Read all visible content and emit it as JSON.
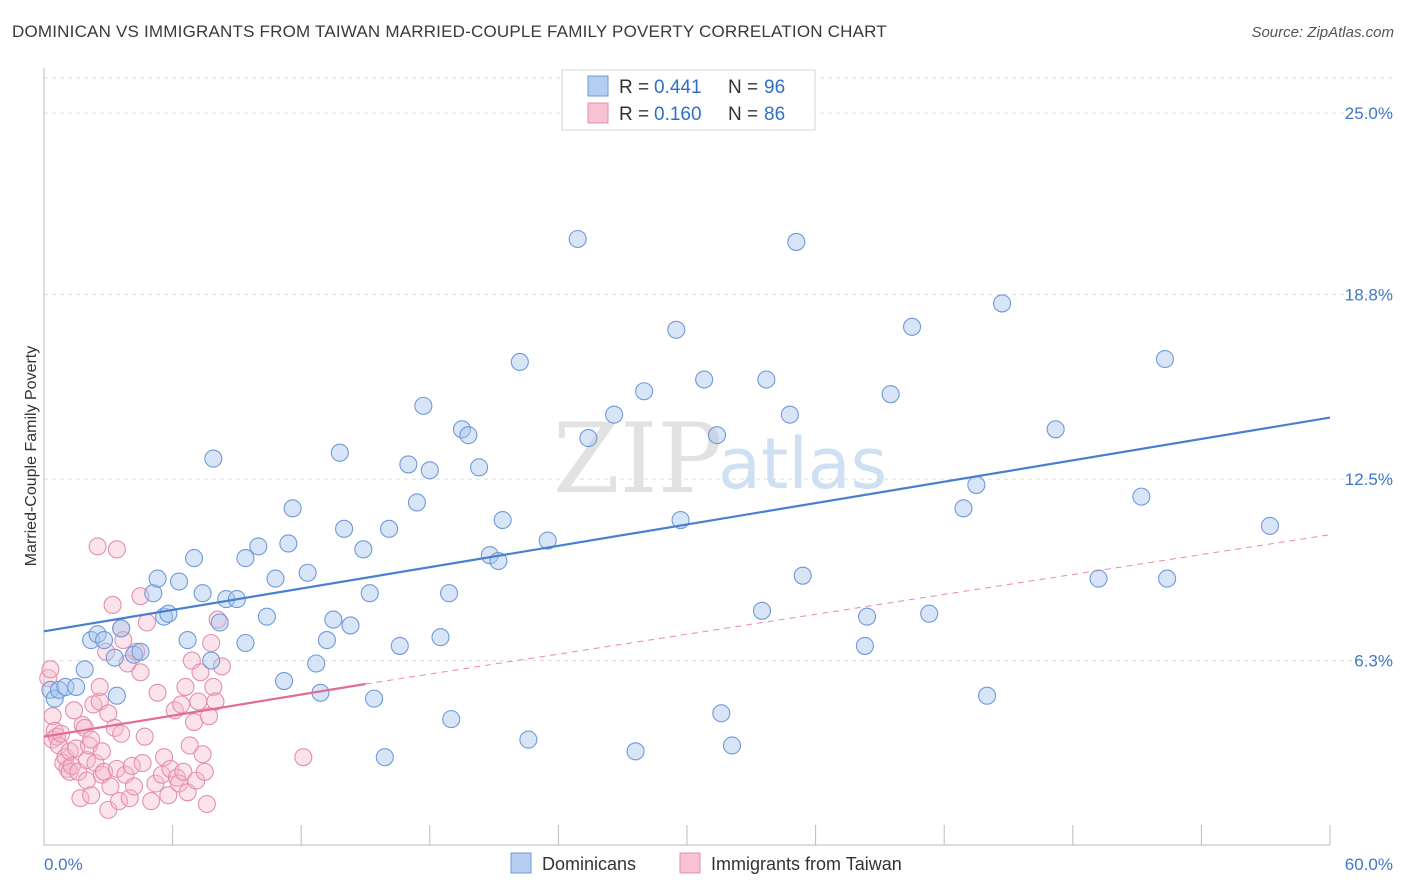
{
  "title": "DOMINICAN VS IMMIGRANTS FROM TAIWAN MARRIED-COUPLE FAMILY POVERTY CORRELATION CHART",
  "source": "Source: ZipAtlas.com",
  "watermark": {
    "zip": "ZIP",
    "atlas": "atlas"
  },
  "colors": {
    "blue": "#4a7fd0",
    "blue_fill": "#a9c6ee",
    "pink": "#e46b97",
    "pink_fill": "#f4b8cc",
    "grid": "#dddddd",
    "tick_label": "#3f78c8"
  },
  "legend": {
    "rows": [
      {
        "r_label": "R =",
        "r_value": "0.441",
        "n_label": "N =",
        "n_value": "96"
      },
      {
        "r_label": "R =",
        "r_value": "0.160",
        "n_label": "N =",
        "n_value": "86"
      }
    ]
  },
  "bottom_legend": [
    "Dominicans",
    "Immigrants from Taiwan"
  ],
  "chart_data": {
    "type": "scatter",
    "title": "DOMINICAN VS IMMIGRANTS FROM TAIWAN MARRIED-COUPLE FAMILY POVERTY CORRELATION CHART",
    "xlabel": "",
    "ylabel": "Married-Couple Family Poverty",
    "xlim": [
      0,
      60
    ],
    "ylim": [
      0,
      26.2
    ],
    "x_tick_labels": [
      "0.0%",
      "60.0%"
    ],
    "y_ticks": [
      6.3,
      12.5,
      18.8,
      25.0
    ],
    "y_tick_labels": [
      "6.3%",
      "12.5%",
      "18.8%",
      "25.0%"
    ],
    "series": [
      {
        "name": "Dominicans",
        "R": 0.441,
        "N": 96,
        "trend": {
          "x0": 0,
          "y0": 7.3,
          "x1": 60,
          "y1": 14.6,
          "style": "solid"
        },
        "points": [
          [
            0.3,
            5.3
          ],
          [
            0.5,
            5.0
          ],
          [
            0.7,
            5.3
          ],
          [
            1.0,
            5.4
          ],
          [
            1.5,
            5.4
          ],
          [
            1.9,
            6.0
          ],
          [
            2.2,
            7.0
          ],
          [
            2.5,
            7.2
          ],
          [
            2.8,
            7.0
          ],
          [
            3.3,
            6.4
          ],
          [
            3.4,
            5.1
          ],
          [
            3.6,
            7.4
          ],
          [
            4.2,
            6.5
          ],
          [
            4.5,
            6.6
          ],
          [
            5.1,
            8.6
          ],
          [
            5.3,
            9.1
          ],
          [
            5.6,
            7.8
          ],
          [
            5.8,
            7.9
          ],
          [
            6.3,
            9.0
          ],
          [
            6.7,
            7.0
          ],
          [
            7.0,
            9.8
          ],
          [
            7.4,
            8.6
          ],
          [
            7.8,
            6.3
          ],
          [
            7.9,
            13.2
          ],
          [
            8.2,
            7.6
          ],
          [
            8.5,
            8.4
          ],
          [
            9.0,
            8.4
          ],
          [
            9.4,
            6.9
          ],
          [
            9.4,
            9.8
          ],
          [
            10.0,
            10.2
          ],
          [
            10.4,
            7.8
          ],
          [
            10.8,
            9.1
          ],
          [
            11.2,
            5.6
          ],
          [
            11.4,
            10.3
          ],
          [
            11.6,
            11.5
          ],
          [
            12.3,
            9.3
          ],
          [
            12.7,
            6.2
          ],
          [
            12.9,
            5.2
          ],
          [
            13.2,
            7.0
          ],
          [
            13.5,
            7.7
          ],
          [
            13.8,
            13.4
          ],
          [
            14.0,
            10.8
          ],
          [
            14.3,
            7.5
          ],
          [
            14.9,
            10.1
          ],
          [
            15.2,
            8.6
          ],
          [
            15.4,
            5.0
          ],
          [
            15.9,
            3.0
          ],
          [
            16.1,
            10.8
          ],
          [
            16.6,
            6.8
          ],
          [
            17.0,
            13.0
          ],
          [
            17.4,
            11.7
          ],
          [
            17.7,
            15.0
          ],
          [
            18.0,
            12.8
          ],
          [
            18.5,
            7.1
          ],
          [
            18.9,
            8.6
          ],
          [
            19.0,
            4.3
          ],
          [
            19.5,
            14.2
          ],
          [
            19.8,
            14.0
          ],
          [
            20.3,
            12.9
          ],
          [
            20.8,
            9.9
          ],
          [
            21.2,
            9.7
          ],
          [
            21.4,
            11.1
          ],
          [
            22.2,
            16.5
          ],
          [
            22.6,
            3.6
          ],
          [
            23.5,
            10.4
          ],
          [
            24.9,
            20.7
          ],
          [
            25.4,
            13.9
          ],
          [
            26.6,
            14.7
          ],
          [
            27.6,
            3.2
          ],
          [
            28.0,
            15.5
          ],
          [
            29.5,
            17.6
          ],
          [
            29.7,
            11.1
          ],
          [
            30.8,
            15.9
          ],
          [
            31.4,
            14.0
          ],
          [
            31.6,
            4.5
          ],
          [
            32.1,
            3.4
          ],
          [
            33.5,
            8.0
          ],
          [
            33.7,
            15.9
          ],
          [
            34.8,
            14.7
          ],
          [
            35.1,
            20.6
          ],
          [
            35.4,
            9.2
          ],
          [
            38.3,
            6.8
          ],
          [
            38.4,
            7.8
          ],
          [
            39.5,
            15.4
          ],
          [
            40.5,
            17.7
          ],
          [
            41.3,
            7.9
          ],
          [
            42.9,
            11.5
          ],
          [
            43.5,
            12.3
          ],
          [
            44.0,
            5.1
          ],
          [
            44.7,
            18.5
          ],
          [
            47.2,
            14.2
          ],
          [
            49.2,
            9.1
          ],
          [
            51.2,
            11.9
          ],
          [
            52.3,
            16.6
          ],
          [
            52.4,
            9.1
          ],
          [
            57.2,
            10.9
          ]
        ]
      },
      {
        "name": "Immigrants from Taiwan",
        "R": 0.16,
        "N": 86,
        "trend": {
          "x0": 0,
          "y0": 3.7,
          "x1": 15,
          "y1": 5.5,
          "style": "solid",
          "extended_x1": 60,
          "extended_y1": 10.6,
          "extended_style": "dashed"
        },
        "points": [
          [
            0.2,
            5.7
          ],
          [
            0.3,
            6.0
          ],
          [
            0.4,
            4.4
          ],
          [
            0.4,
            3.6
          ],
          [
            0.5,
            3.9
          ],
          [
            0.6,
            3.7
          ],
          [
            0.7,
            3.4
          ],
          [
            0.8,
            3.8
          ],
          [
            0.9,
            2.8
          ],
          [
            1.0,
            3.0
          ],
          [
            1.1,
            2.6
          ],
          [
            1.2,
            3.2
          ],
          [
            1.2,
            2.5
          ],
          [
            1.3,
            2.7
          ],
          [
            1.4,
            4.6
          ],
          [
            1.5,
            3.3
          ],
          [
            1.6,
            2.5
          ],
          [
            1.7,
            1.6
          ],
          [
            1.8,
            4.1
          ],
          [
            1.9,
            4.0
          ],
          [
            2.0,
            2.2
          ],
          [
            2.0,
            2.9
          ],
          [
            2.1,
            3.4
          ],
          [
            2.2,
            3.6
          ],
          [
            2.2,
            1.7
          ],
          [
            2.3,
            4.8
          ],
          [
            2.4,
            2.8
          ],
          [
            2.5,
            10.2
          ],
          [
            2.6,
            4.9
          ],
          [
            2.6,
            5.4
          ],
          [
            2.7,
            2.4
          ],
          [
            2.7,
            3.2
          ],
          [
            2.8,
            2.5
          ],
          [
            2.9,
            6.6
          ],
          [
            3.0,
            4.5
          ],
          [
            3.0,
            1.2
          ],
          [
            3.1,
            2.0
          ],
          [
            3.2,
            8.2
          ],
          [
            3.3,
            4.0
          ],
          [
            3.4,
            2.6
          ],
          [
            3.4,
            10.1
          ],
          [
            3.5,
            1.5
          ],
          [
            3.6,
            7.4
          ],
          [
            3.6,
            3.8
          ],
          [
            3.7,
            7.0
          ],
          [
            3.8,
            2.4
          ],
          [
            3.9,
            6.2
          ],
          [
            4.0,
            1.6
          ],
          [
            4.1,
            2.7
          ],
          [
            4.2,
            2.0
          ],
          [
            4.3,
            6.6
          ],
          [
            4.5,
            8.5
          ],
          [
            4.5,
            5.9
          ],
          [
            4.6,
            2.8
          ],
          [
            4.7,
            3.7
          ],
          [
            4.8,
            7.6
          ],
          [
            5.0,
            1.5
          ],
          [
            5.2,
            2.1
          ],
          [
            5.3,
            5.2
          ],
          [
            5.5,
            2.4
          ],
          [
            5.6,
            3.0
          ],
          [
            5.8,
            1.7
          ],
          [
            5.9,
            2.6
          ],
          [
            6.1,
            4.6
          ],
          [
            6.2,
            2.3
          ],
          [
            6.3,
            2.1
          ],
          [
            6.4,
            4.8
          ],
          [
            6.5,
            2.5
          ],
          [
            6.6,
            5.4
          ],
          [
            6.7,
            1.8
          ],
          [
            6.8,
            3.4
          ],
          [
            6.9,
            6.3
          ],
          [
            7.0,
            4.2
          ],
          [
            7.1,
            2.2
          ],
          [
            7.2,
            4.9
          ],
          [
            7.3,
            5.9
          ],
          [
            7.4,
            3.1
          ],
          [
            7.5,
            2.5
          ],
          [
            7.6,
            1.4
          ],
          [
            7.7,
            4.4
          ],
          [
            7.8,
            6.9
          ],
          [
            7.9,
            5.4
          ],
          [
            8.0,
            4.9
          ],
          [
            8.1,
            7.7
          ],
          [
            8.3,
            6.1
          ],
          [
            12.1,
            3.0
          ]
        ]
      }
    ]
  }
}
